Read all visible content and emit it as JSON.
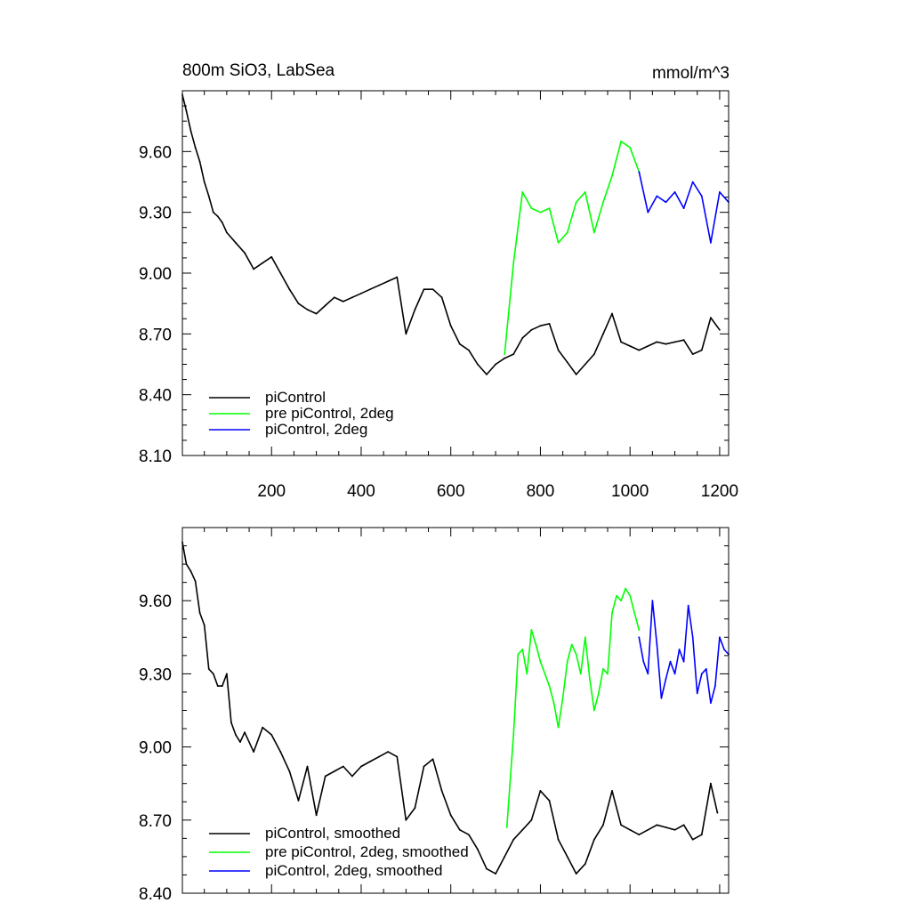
{
  "chart_data": [
    {
      "type": "line",
      "title_left": "800m SiO3, LabSea",
      "title_right": "mmol/m^3",
      "xlim": [
        1,
        1220
      ],
      "ylim": [
        8.1,
        9.9
      ],
      "xticks": [
        200,
        400,
        600,
        800,
        1000,
        1200
      ],
      "xtick_labels": [
        "200",
        "400",
        "600",
        "800",
        "1000",
        "1200"
      ],
      "xtick_labels_shown": true,
      "yticks": [
        8.1,
        8.4,
        8.7,
        9.0,
        9.3,
        9.6
      ],
      "ytick_labels": [
        "8.10",
        "8.40",
        "8.70",
        "9.00",
        "9.30",
        "9.60"
      ],
      "legend_position": "bottom-left",
      "series": [
        {
          "name": "piControl",
          "color": "#000000",
          "x": [
            1,
            10,
            20,
            30,
            40,
            50,
            60,
            70,
            80,
            90,
            100,
            120,
            140,
            160,
            180,
            200,
            220,
            240,
            260,
            280,
            300,
            320,
            340,
            360,
            380,
            400,
            420,
            440,
            460,
            480,
            500,
            520,
            540,
            560,
            580,
            600,
            620,
            640,
            660,
            680,
            700,
            720,
            740,
            760,
            780,
            800,
            820,
            840,
            860,
            880,
            900,
            920,
            940,
            960,
            980,
            1000,
            1020,
            1040,
            1060,
            1080,
            1100,
            1120,
            1140,
            1160,
            1180,
            1200
          ],
          "y": [
            9.88,
            9.8,
            9.7,
            9.62,
            9.55,
            9.45,
            9.38,
            9.3,
            9.28,
            9.25,
            9.2,
            9.15,
            9.1,
            9.02,
            9.05,
            9.08,
            9.0,
            8.92,
            8.85,
            8.82,
            8.8,
            8.84,
            8.88,
            8.86,
            8.88,
            8.9,
            8.92,
            8.94,
            8.96,
            8.98,
            8.7,
            8.82,
            8.92,
            8.92,
            8.88,
            8.74,
            8.65,
            8.62,
            8.55,
            8.5,
            8.55,
            8.58,
            8.6,
            8.68,
            8.72,
            8.74,
            8.75,
            8.62,
            8.56,
            8.5,
            8.55,
            8.6,
            8.7,
            8.8,
            8.66,
            8.64,
            8.62,
            8.64,
            8.66,
            8.65,
            8.66,
            8.67,
            8.6,
            8.62,
            8.78,
            8.72
          ]
        },
        {
          "name": "pre piControl, 2deg",
          "color": "#00ff00",
          "x": [
            720,
            740,
            760,
            780,
            800,
            820,
            840,
            860,
            880,
            900,
            920,
            940,
            960,
            980,
            1000,
            1020
          ],
          "y": [
            8.6,
            9.05,
            9.4,
            9.32,
            9.3,
            9.32,
            9.15,
            9.2,
            9.35,
            9.4,
            9.2,
            9.35,
            9.48,
            9.65,
            9.62,
            9.5
          ]
        },
        {
          "name": "piControl, 2deg",
          "color": "#0000ff",
          "x": [
            1020,
            1040,
            1060,
            1080,
            1100,
            1120,
            1140,
            1160,
            1180,
            1200,
            1220
          ],
          "y": [
            9.5,
            9.3,
            9.38,
            9.35,
            9.4,
            9.32,
            9.45,
            9.38,
            9.15,
            9.4,
            9.35
          ]
        }
      ]
    },
    {
      "type": "line",
      "xlim": [
        1,
        1220
      ],
      "ylim": [
        8.4,
        9.9
      ],
      "xticks": [
        200,
        400,
        600,
        800,
        1000,
        1200
      ],
      "xtick_labels_shown": false,
      "yticks": [
        8.4,
        8.7,
        9.0,
        9.3,
        9.6
      ],
      "ytick_labels": [
        "8.40",
        "8.70",
        "9.00",
        "9.30",
        "9.60"
      ],
      "legend_position": "bottom-left",
      "series": [
        {
          "name": "piControl, smoothed",
          "color": "#000000",
          "x": [
            1,
            10,
            20,
            30,
            40,
            50,
            60,
            70,
            80,
            90,
            100,
            110,
            120,
            130,
            140,
            160,
            180,
            200,
            220,
            240,
            260,
            280,
            300,
            320,
            340,
            360,
            380,
            400,
            420,
            440,
            460,
            480,
            500,
            520,
            540,
            560,
            580,
            600,
            620,
            640,
            660,
            680,
            700,
            720,
            740,
            760,
            780,
            800,
            820,
            840,
            860,
            880,
            900,
            920,
            940,
            960,
            980,
            1000,
            1020,
            1040,
            1060,
            1080,
            1100,
            1120,
            1140,
            1160,
            1180,
            1195
          ],
          "y": [
            9.84,
            9.75,
            9.72,
            9.68,
            9.55,
            9.5,
            9.32,
            9.3,
            9.25,
            9.25,
            9.3,
            9.1,
            9.05,
            9.02,
            9.06,
            8.98,
            9.08,
            9.05,
            8.98,
            8.9,
            8.78,
            8.92,
            8.72,
            8.88,
            8.9,
            8.92,
            8.88,
            8.92,
            8.94,
            8.96,
            8.98,
            8.96,
            8.7,
            8.75,
            8.92,
            8.95,
            8.82,
            8.72,
            8.66,
            8.64,
            8.58,
            8.5,
            8.48,
            8.55,
            8.62,
            8.66,
            8.7,
            8.82,
            8.78,
            8.62,
            8.55,
            8.48,
            8.52,
            8.62,
            8.68,
            8.82,
            8.68,
            8.66,
            8.64,
            8.66,
            8.68,
            8.67,
            8.66,
            8.68,
            8.62,
            8.64,
            8.85,
            8.73
          ]
        },
        {
          "name": "pre piControl, 2deg, smoothed",
          "color": "#00ff00",
          "x": [
            725,
            740,
            750,
            760,
            770,
            780,
            790,
            800,
            810,
            820,
            830,
            840,
            850,
            860,
            870,
            880,
            890,
            900,
            910,
            920,
            930,
            940,
            950,
            960,
            970,
            980,
            990,
            1000,
            1010,
            1020
          ],
          "y": [
            8.67,
            9.05,
            9.38,
            9.4,
            9.3,
            9.48,
            9.42,
            9.35,
            9.3,
            9.25,
            9.18,
            9.08,
            9.2,
            9.35,
            9.42,
            9.38,
            9.3,
            9.45,
            9.28,
            9.15,
            9.22,
            9.32,
            9.3,
            9.55,
            9.62,
            9.6,
            9.65,
            9.62,
            9.55,
            9.48
          ]
        },
        {
          "name": "piControl, 2deg, smoothed",
          "color": "#0000ff",
          "x": [
            1020,
            1030,
            1040,
            1050,
            1060,
            1070,
            1080,
            1090,
            1100,
            1110,
            1120,
            1130,
            1140,
            1150,
            1160,
            1170,
            1180,
            1190,
            1200,
            1210,
            1220
          ],
          "y": [
            9.45,
            9.35,
            9.3,
            9.6,
            9.42,
            9.2,
            9.28,
            9.35,
            9.3,
            9.4,
            9.35,
            9.58,
            9.45,
            9.22,
            9.3,
            9.32,
            9.18,
            9.25,
            9.45,
            9.4,
            9.38
          ]
        }
      ]
    }
  ]
}
